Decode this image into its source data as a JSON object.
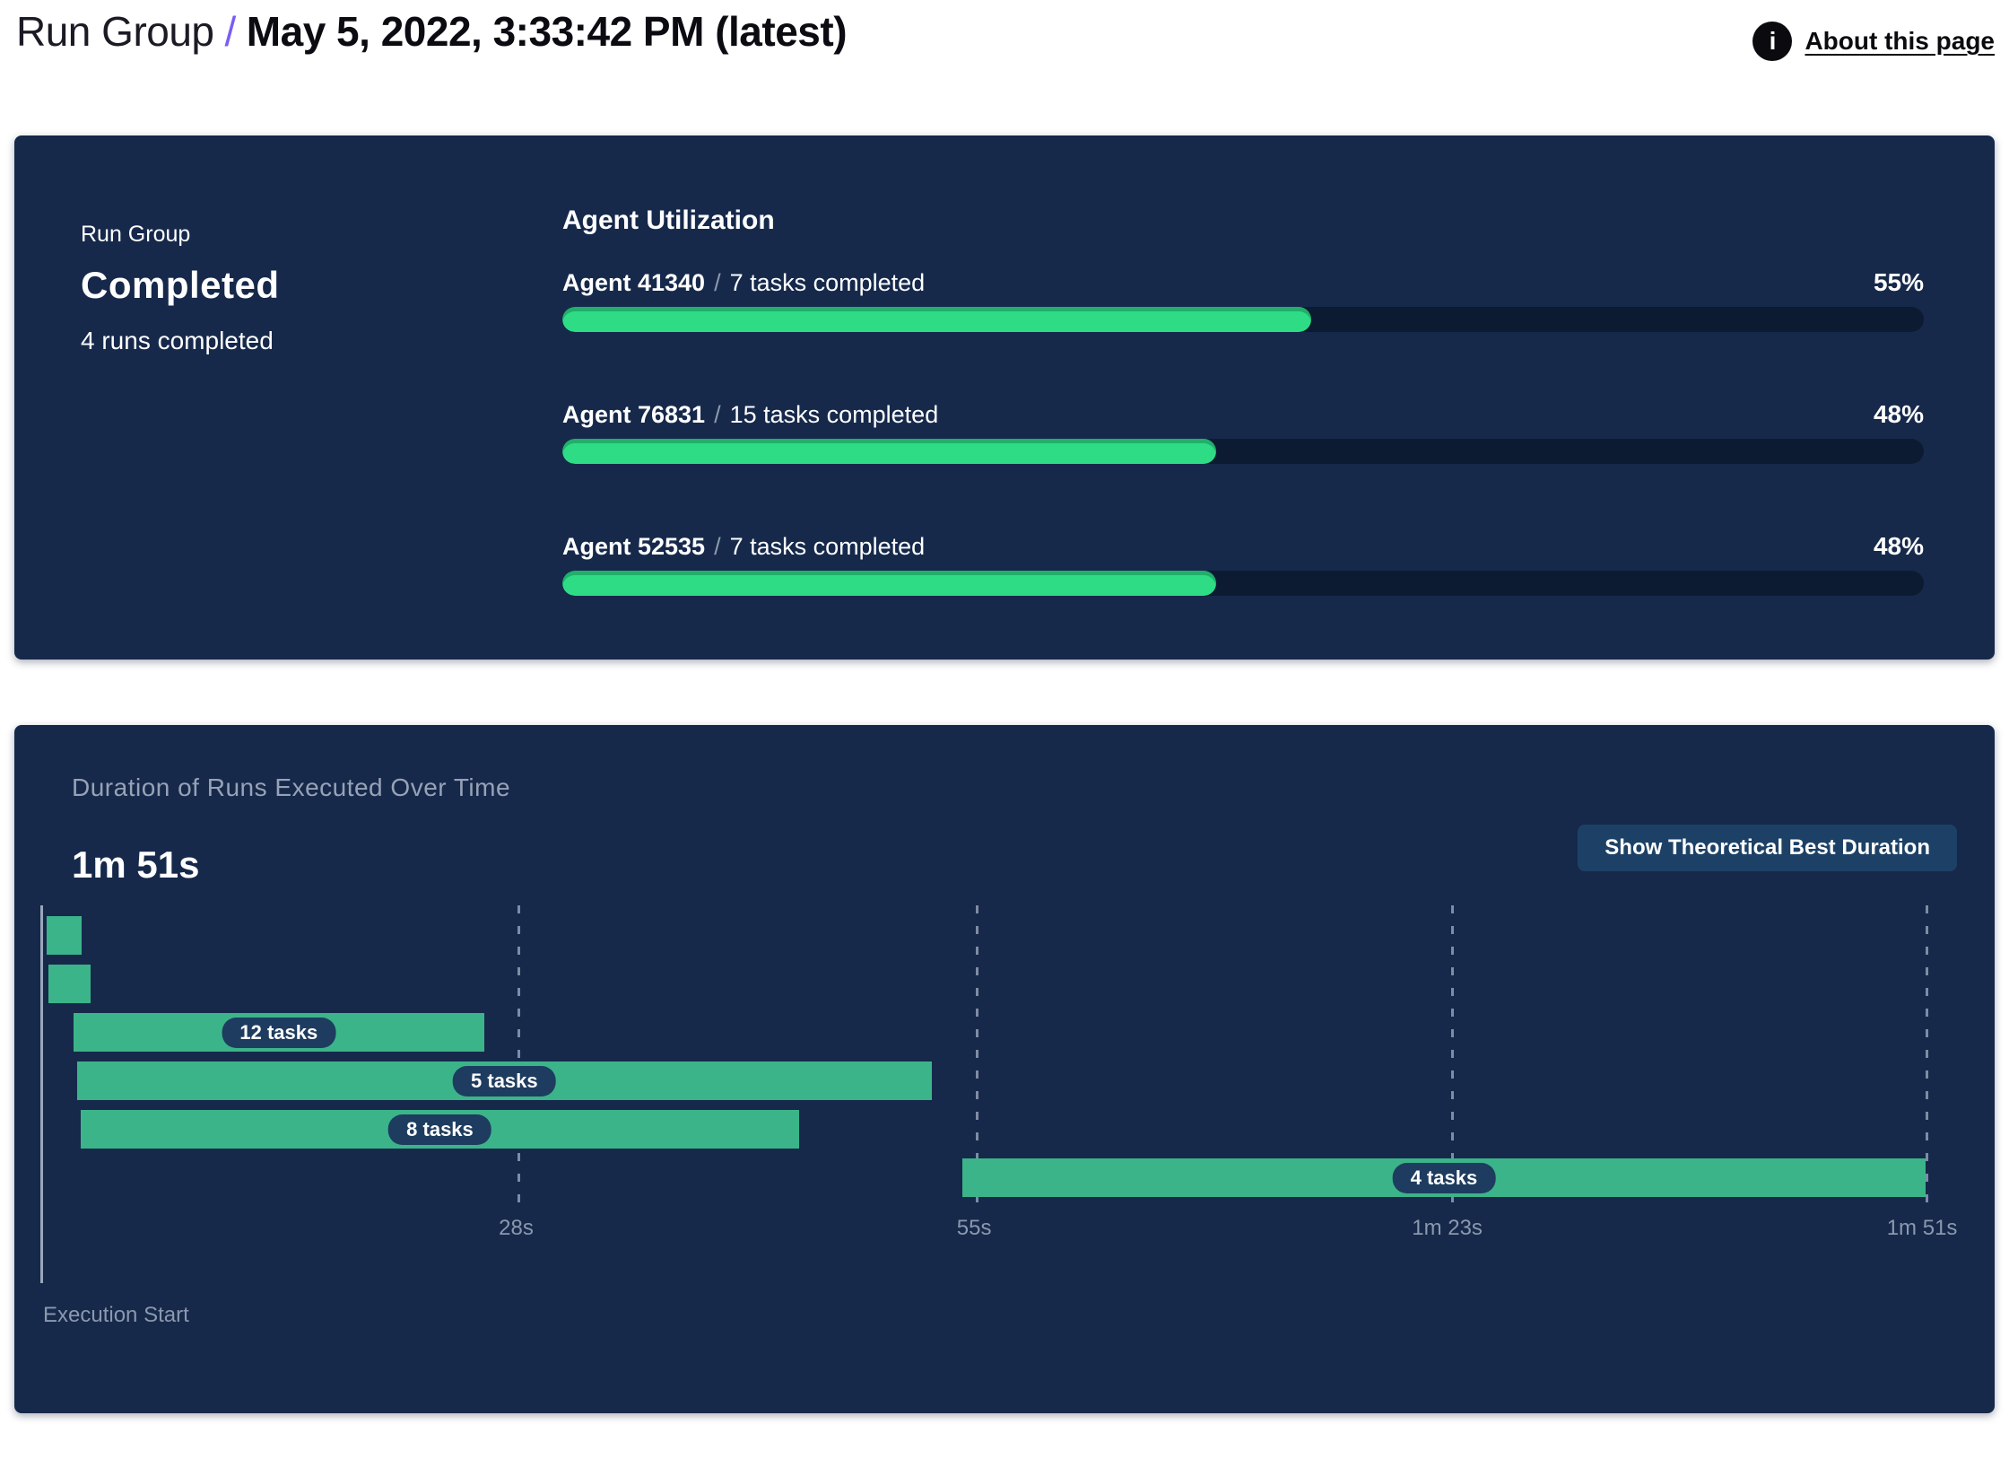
{
  "header": {
    "breadcrumb_root": "Run Group",
    "separator": "/",
    "title": "May 5, 2022, 3:33:42 PM (latest)",
    "about_link": "About this page",
    "info_glyph": "i"
  },
  "status_panel": {
    "label": "Run Group",
    "status": "Completed",
    "runs_summary": "4 runs completed",
    "section_title": "Agent Utilization",
    "agents": [
      {
        "name": "Agent 41340",
        "separator": "/",
        "tasks": "7 tasks completed",
        "percent": 55,
        "percent_label": "55%"
      },
      {
        "name": "Agent 76831",
        "separator": "/",
        "tasks": "15 tasks completed",
        "percent": 48,
        "percent_label": "48%"
      },
      {
        "name": "Agent 52535",
        "separator": "/",
        "tasks": "7 tasks completed",
        "percent": 48,
        "percent_label": "48%"
      }
    ]
  },
  "duration_panel": {
    "title": "Duration of Runs Executed Over Time",
    "total_duration": "1m 51s",
    "button_label": "Show Theoretical Best Duration",
    "axis_label": "Execution Start"
  },
  "chart_data": {
    "type": "gantt",
    "title": "Duration of Runs Executed Over Time",
    "xlabel": "Execution Start",
    "total_duration_s": 111,
    "x_ticks": [
      {
        "label": "28s",
        "t": 28
      },
      {
        "label": "55s",
        "t": 55
      },
      {
        "label": "1m 23s",
        "t": 83
      },
      {
        "label": "1m 51s",
        "t": 111
      }
    ],
    "bars": [
      {
        "label": "",
        "start_s": 0.2,
        "end_s": 2.3
      },
      {
        "label": "",
        "start_s": 0.3,
        "end_s": 2.8
      },
      {
        "label": "12 tasks",
        "start_s": 1.8,
        "end_s": 26.0
      },
      {
        "label": "5 tasks",
        "start_s": 2.0,
        "end_s": 52.4
      },
      {
        "label": "8 tasks",
        "start_s": 2.2,
        "end_s": 44.6
      },
      {
        "label": "4 tasks",
        "start_s": 54.2,
        "end_s": 111.0
      }
    ],
    "colors": {
      "bar": "#3CB489",
      "pill_bg": "#1E3C5F",
      "grid": "#8A97AE",
      "progress_fill": "#2EDC86"
    }
  }
}
